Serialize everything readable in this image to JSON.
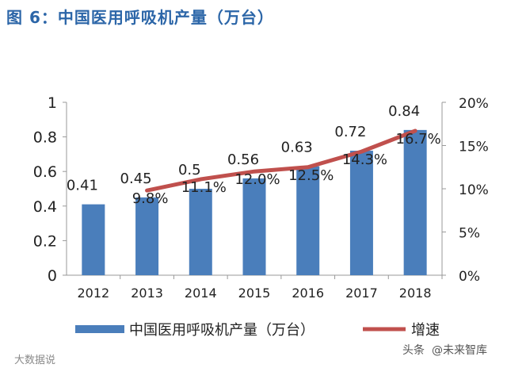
{
  "title": "图 6：中国医用呼吸机产量（万台）",
  "chart_data": {
    "type": "bar",
    "title": "图 6：中国医用呼吸机产量（万台）",
    "categories": [
      "2012",
      "2013",
      "2014",
      "2015",
      "2016",
      "2017",
      "2018"
    ],
    "series": [
      {
        "name": "中国医用呼吸机产量（万台）",
        "type": "bar",
        "axis": "left",
        "values": [
          0.41,
          0.45,
          0.5,
          0.56,
          0.63,
          0.72,
          0.84
        ],
        "labels": [
          "0.41",
          "0.45",
          "0.5",
          "0.56",
          "0.63",
          "0.72",
          "0.84"
        ],
        "color": "#4a7ebb"
      },
      {
        "name": "增速",
        "type": "line",
        "axis": "right",
        "values": [
          null,
          9.8,
          11.1,
          12.0,
          12.5,
          14.3,
          16.7
        ],
        "labels": [
          "",
          "9.8%",
          "11.1%",
          "12.0%",
          "12.5%",
          "14.3%",
          "16.7%"
        ],
        "color": "#c0504d"
      }
    ],
    "y_left": {
      "range": [
        0,
        1
      ],
      "ticks": [
        "0",
        "0.2",
        "0.4",
        "0.6",
        "0.8",
        "1"
      ]
    },
    "y_right": {
      "range": [
        0,
        20
      ],
      "ticks": [
        "0%",
        "5%",
        "10%",
        "15%",
        "20%"
      ]
    },
    "legend_position": "bottom"
  },
  "watermarks": {
    "left": "大数据说",
    "right_prefix": "头条",
    "right_handle": "@未来智库"
  }
}
